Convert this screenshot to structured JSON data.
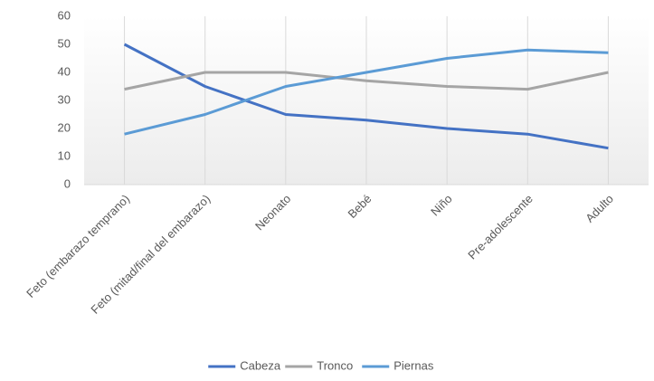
{
  "chart_data": {
    "type": "line",
    "categories": [
      "Feto (embarazo temprano)",
      "Feto (mitad/final del embarazo)",
      "Neonato",
      "Bebé",
      "Niño",
      "Pre-adolescente",
      "Adulto"
    ],
    "series": [
      {
        "name": "Cabeza",
        "color": "#4472c4",
        "values": [
          50,
          35,
          25,
          23,
          20,
          18,
          13
        ]
      },
      {
        "name": "Tronco",
        "color": "#a5a5a5",
        "values": [
          34,
          40,
          40,
          37,
          35,
          34,
          40
        ]
      },
      {
        "name": "Piernas",
        "color": "#5b9bd5",
        "values": [
          18,
          25,
          35,
          40,
          45,
          48,
          47
        ]
      }
    ],
    "ylim": [
      0,
      60
    ],
    "yticks": [
      0,
      10,
      20,
      30,
      40,
      50,
      60
    ],
    "grid": true,
    "legend": "bottom"
  }
}
